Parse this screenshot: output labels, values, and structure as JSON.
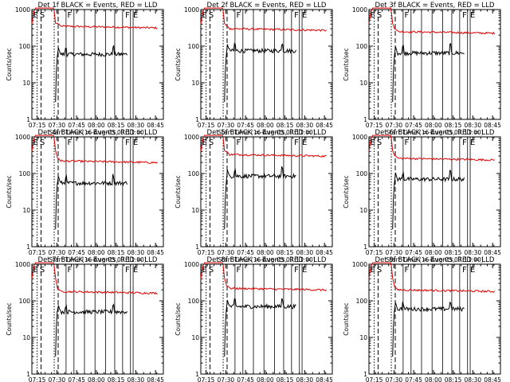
{
  "chart_data": {
    "type": "line",
    "layout": "3x3 grid",
    "xlabel": "Start Time (16-Aug-05 07:11:00)",
    "ylabel": "Counts/sec",
    "x_ticks": [
      "07:15",
      "07:30",
      "07:45",
      "08:00",
      "08:15",
      "08:30",
      "08:45"
    ],
    "y_ticks": [
      "1",
      "10",
      "100",
      "1000"
    ],
    "y_scale": "log",
    "ylim": [
      1,
      1000
    ],
    "xlim_minutes_from_0711": [
      0,
      100
    ],
    "series_colors": {
      "events": "#000000",
      "lld": "#e00000"
    },
    "markers": {
      "dashed": [
        7,
        20
      ],
      "dotted": [
        4,
        17
      ],
      "solid": [
        26,
        32,
        40,
        48,
        56,
        63,
        69,
        75,
        77
      ]
    },
    "marker_letters": [
      {
        "text": "E",
        "x": 1
      },
      {
        "text": "S",
        "x": 6
      },
      {
        "text": "F",
        "x": 27
      },
      {
        "text": "F",
        "x": 71
      },
      {
        "text": "E",
        "x": 77
      }
    ],
    "panels": [
      {
        "title": "Det  1f BLACK = Events, RED = LLD",
        "events_level": 60,
        "lld_level": 350
      },
      {
        "title": "Det  2f BLACK = Events, RED = LLD",
        "events_level": 75,
        "lld_level": 300
      },
      {
        "title": "Det  3f BLACK = Events, RED = LLD",
        "events_level": 65,
        "lld_level": 250
      },
      {
        "title": "Det  4f BLACK = Events, RED = LLD",
        "events_level": 55,
        "lld_level": 220
      },
      {
        "title": "Det  5f BLACK = Events, RED = LLD",
        "events_level": 85,
        "lld_level": 330
      },
      {
        "title": "Det  6f BLACK = Events, RED = LLD",
        "events_level": 70,
        "lld_level": 260
      },
      {
        "title": "Det  7f BLACK = Events, RED = LLD",
        "events_level": 50,
        "lld_level": 180
      },
      {
        "title": "Det  8f BLACK = Events, RED = LLD",
        "events_level": 70,
        "lld_level": 220
      },
      {
        "title": "Det  9f BLACK = Events, RED = LLD",
        "events_level": 60,
        "lld_level": 200
      }
    ]
  }
}
